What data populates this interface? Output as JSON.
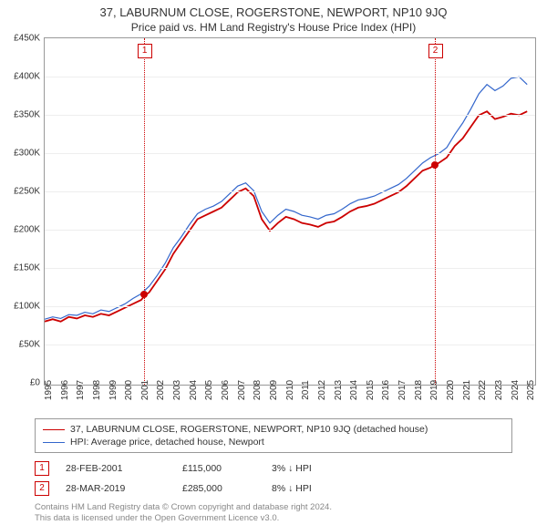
{
  "title": "37, LABURNUM CLOSE, ROGERSTONE, NEWPORT, NP10 9JQ",
  "subtitle": "Price paid vs. HM Land Registry's House Price Index (HPI)",
  "chart": {
    "type": "line",
    "background_color": "#ffffff",
    "grid_color": "#eeeeee",
    "border_color": "#999999",
    "ylim": [
      0,
      450000
    ],
    "ytick_step": 50000,
    "ytick_labels": [
      "£0",
      "£50K",
      "£100K",
      "£150K",
      "£200K",
      "£250K",
      "£300K",
      "£350K",
      "£400K",
      "£450K"
    ],
    "xlim": [
      1995,
      2025.5
    ],
    "xtick_step": 1,
    "xtick_labels": [
      "1995",
      "1996",
      "1997",
      "1998",
      "1999",
      "2000",
      "2001",
      "2002",
      "2003",
      "2004",
      "2005",
      "2006",
      "2007",
      "2008",
      "2009",
      "2010",
      "2011",
      "2012",
      "2013",
      "2014",
      "2015",
      "2016",
      "2017",
      "2018",
      "2019",
      "2020",
      "2021",
      "2022",
      "2023",
      "2024",
      "2025"
    ],
    "title_fontsize": 13,
    "subtitle_fontsize": 12,
    "tick_fontsize": 10,
    "series": [
      {
        "name": "property",
        "label": "37, LABURNUM CLOSE, ROGERSTONE, NEWPORT, NP10 9JQ (detached house)",
        "color": "#cc0000",
        "line_width": 1.8,
        "x": [
          1995,
          1995.5,
          1996,
          1996.5,
          1997,
          1997.5,
          1998,
          1998.5,
          1999,
          1999.5,
          2000,
          2000.5,
          2001,
          2001.2,
          2001.5,
          2002,
          2002.5,
          2003,
          2003.5,
          2004,
          2004.5,
          2005,
          2005.5,
          2006,
          2006.5,
          2007,
          2007.5,
          2008,
          2008.5,
          2009,
          2009.5,
          2010,
          2010.5,
          2011,
          2011.5,
          2012,
          2012.5,
          2013,
          2013.5,
          2014,
          2014.5,
          2015,
          2015.5,
          2016,
          2016.5,
          2017,
          2017.5,
          2018,
          2018.5,
          2019,
          2019.2,
          2019.5,
          2020,
          2020.5,
          2021,
          2021.5,
          2022,
          2022.5,
          2023,
          2023.5,
          2024,
          2024.5,
          2025
        ],
        "y": [
          82000,
          85000,
          82000,
          88000,
          86000,
          90000,
          88000,
          92000,
          90000,
          95000,
          100000,
          105000,
          110000,
          115000,
          120000,
          135000,
          150000,
          170000,
          185000,
          200000,
          215000,
          220000,
          225000,
          230000,
          240000,
          250000,
          255000,
          245000,
          215000,
          200000,
          210000,
          218000,
          215000,
          210000,
          208000,
          205000,
          210000,
          212000,
          218000,
          225000,
          230000,
          232000,
          235000,
          240000,
          245000,
          250000,
          258000,
          268000,
          278000,
          282000,
          285000,
          288000,
          295000,
          310000,
          320000,
          335000,
          350000,
          355000,
          345000,
          348000,
          352000,
          350000,
          355000
        ]
      },
      {
        "name": "hpi",
        "label": "HPI: Average price, detached house, Newport",
        "color": "#3366cc",
        "line_width": 1.2,
        "x": [
          1995,
          1995.5,
          1996,
          1996.5,
          1997,
          1997.5,
          1998,
          1998.5,
          1999,
          1999.5,
          2000,
          2000.5,
          2001,
          2001.5,
          2002,
          2002.5,
          2003,
          2003.5,
          2004,
          2004.5,
          2005,
          2005.5,
          2006,
          2006.5,
          2007,
          2007.5,
          2008,
          2008.5,
          2009,
          2009.5,
          2010,
          2010.5,
          2011,
          2011.5,
          2012,
          2012.5,
          2013,
          2013.5,
          2014,
          2014.5,
          2015,
          2015.5,
          2016,
          2016.5,
          2017,
          2017.5,
          2018,
          2018.5,
          2019,
          2019.5,
          2020,
          2020.5,
          2021,
          2021.5,
          2022,
          2022.5,
          2023,
          2023.5,
          2024,
          2024.5,
          2025
        ],
        "y": [
          85000,
          88000,
          86000,
          91000,
          90000,
          94000,
          92000,
          97000,
          95000,
          100000,
          105000,
          112000,
          118000,
          128000,
          142000,
          158000,
          178000,
          192000,
          208000,
          222000,
          228000,
          232000,
          238000,
          248000,
          258000,
          262000,
          252000,
          225000,
          210000,
          220000,
          228000,
          225000,
          220000,
          218000,
          215000,
          220000,
          222000,
          228000,
          235000,
          240000,
          242000,
          245000,
          250000,
          255000,
          260000,
          268000,
          278000,
          288000,
          295000,
          300000,
          308000,
          325000,
          340000,
          358000,
          378000,
          390000,
          382000,
          388000,
          398000,
          400000,
          390000
        ]
      }
    ],
    "markers": [
      {
        "id": "1",
        "x": 2001.16,
        "y": 115000,
        "date": "28-FEB-2001",
        "price": "£115,000",
        "diff": "3% ↓ HPI",
        "line_color": "#cc0000",
        "box_color": "#cc0000"
      },
      {
        "id": "2",
        "x": 2019.24,
        "y": 285000,
        "date": "28-MAR-2019",
        "price": "£285,000",
        "diff": "8% ↓ HPI",
        "line_color": "#cc0000",
        "box_color": "#cc0000"
      }
    ]
  },
  "legend": {
    "border_color": "#999999",
    "fontsize": 10.5
  },
  "footnote": {
    "line1": "Contains HM Land Registry data © Crown copyright and database right 2024.",
    "line2": "This data is licensed under the Open Government Licence v3.0.",
    "color": "#888888",
    "fontsize": 9.5
  }
}
